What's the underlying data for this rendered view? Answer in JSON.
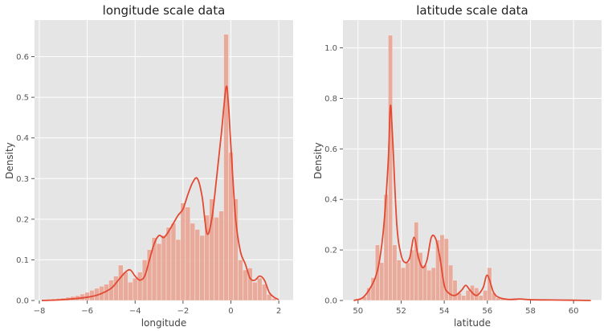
{
  "chart_data": [
    {
      "type": "histogram_kde",
      "title": "longitude scale data",
      "xlabel": "longitude",
      "ylabel": "Density",
      "xlim": [
        -8.2,
        2.6
      ],
      "ylim": [
        0,
        0.69
      ],
      "xticks": [
        -8,
        -6,
        -4,
        -2,
        0,
        2
      ],
      "yticks": [
        0.0,
        0.1,
        0.2,
        0.3,
        0.4,
        0.5,
        0.6
      ],
      "grid": true,
      "bin_edges_start": -7.9,
      "bin_width": 0.2,
      "densities": [
        0.002,
        0.003,
        0.004,
        0.005,
        0.006,
        0.008,
        0.01,
        0.012,
        0.016,
        0.02,
        0.025,
        0.03,
        0.035,
        0.04,
        0.05,
        0.06,
        0.087,
        0.07,
        0.045,
        0.055,
        0.07,
        0.1,
        0.125,
        0.155,
        0.14,
        0.16,
        0.18,
        0.19,
        0.15,
        0.24,
        0.23,
        0.19,
        0.175,
        0.16,
        0.21,
        0.25,
        0.205,
        0.22,
        0.655,
        0.365,
        0.25,
        0.1,
        0.075,
        0.08,
        0.045,
        0.055,
        0.04,
        0.015,
        0.005
      ],
      "kde_x": [
        -7.9,
        -7.0,
        -6.0,
        -5.5,
        -5.0,
        -4.7,
        -4.4,
        -4.2,
        -4.0,
        -3.8,
        -3.6,
        -3.4,
        -3.2,
        -3.0,
        -2.8,
        -2.6,
        -2.4,
        -2.2,
        -2.0,
        -1.8,
        -1.6,
        -1.4,
        -1.2,
        -1.0,
        -0.8,
        -0.6,
        -0.4,
        -0.2,
        -0.1,
        0.0,
        0.2,
        0.4,
        0.6,
        0.8,
        1.0,
        1.2,
        1.4,
        1.6,
        1.8,
        2.0
      ],
      "kde_y": [
        0.0,
        0.002,
        0.008,
        0.015,
        0.03,
        0.05,
        0.07,
        0.075,
        0.06,
        0.05,
        0.06,
        0.1,
        0.14,
        0.16,
        0.155,
        0.17,
        0.19,
        0.21,
        0.225,
        0.26,
        0.29,
        0.3,
        0.255,
        0.165,
        0.2,
        0.3,
        0.41,
        0.525,
        0.48,
        0.38,
        0.2,
        0.12,
        0.09,
        0.055,
        0.05,
        0.06,
        0.05,
        0.02,
        0.008,
        0.002
      ]
    },
    {
      "type": "histogram_kde",
      "title": "latitude scale data",
      "xlabel": "latitude",
      "ylabel": "Density",
      "xlim": [
        49.3,
        61.3
      ],
      "ylim": [
        0,
        1.11
      ],
      "xticks": [
        50,
        52,
        54,
        56,
        58,
        60
      ],
      "yticks": [
        0.0,
        0.2,
        0.4,
        0.6,
        0.8,
        1.0
      ],
      "grid": true,
      "bin_edges_start": 50.0,
      "bin_width": 0.2,
      "densities": [
        0.005,
        0.015,
        0.05,
        0.09,
        0.22,
        0.15,
        0.42,
        1.05,
        0.22,
        0.16,
        0.13,
        0.15,
        0.2,
        0.31,
        0.19,
        0.14,
        0.12,
        0.13,
        0.24,
        0.26,
        0.245,
        0.14,
        0.08,
        0.03,
        0.02,
        0.04,
        0.06,
        0.05,
        0.02,
        0.04,
        0.13,
        0.03,
        0.01,
        0.005,
        0.004,
        0.005,
        0.004,
        0.002,
        0.002,
        0.001
      ],
      "kde_x": [
        49.8,
        50.2,
        50.5,
        50.8,
        51.0,
        51.2,
        51.4,
        51.5,
        51.6,
        51.8,
        52.0,
        52.2,
        52.4,
        52.6,
        52.8,
        53.0,
        53.2,
        53.4,
        53.6,
        53.8,
        54.0,
        54.2,
        54.5,
        54.8,
        55.0,
        55.2,
        55.5,
        55.8,
        56.0,
        56.3,
        56.6,
        57.0,
        57.5,
        58.0,
        59.0,
        60.0,
        60.8
      ],
      "kde_y": [
        0.0,
        0.01,
        0.04,
        0.09,
        0.16,
        0.3,
        0.55,
        0.77,
        0.65,
        0.3,
        0.18,
        0.15,
        0.17,
        0.25,
        0.17,
        0.13,
        0.16,
        0.25,
        0.245,
        0.17,
        0.06,
        0.03,
        0.02,
        0.04,
        0.06,
        0.04,
        0.02,
        0.05,
        0.1,
        0.03,
        0.01,
        0.004,
        0.006,
        0.003,
        0.002,
        0.001,
        0.0
      ]
    }
  ],
  "colors": {
    "plot_bg": "#e5e5e5",
    "grid": "#ffffff",
    "bar_fill": "#e8a08e",
    "kde_line": "#e24a33"
  }
}
